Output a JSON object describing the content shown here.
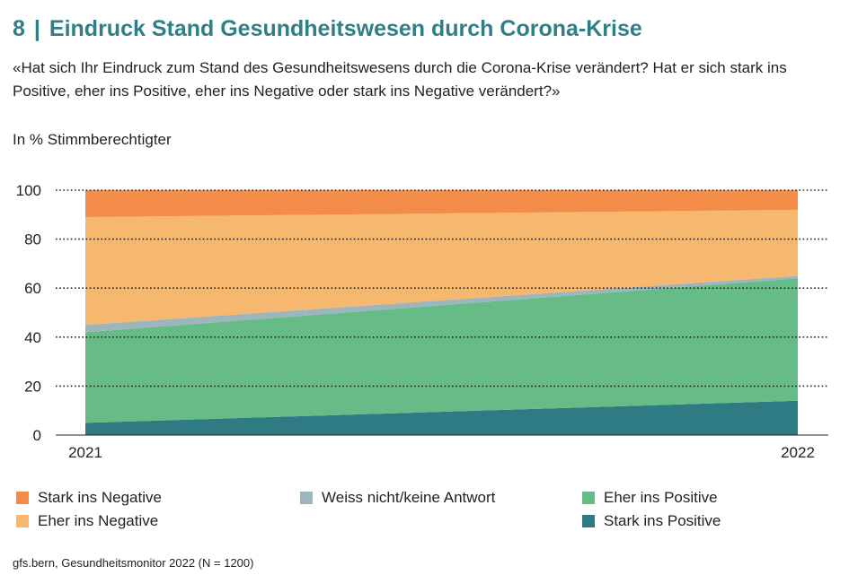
{
  "header": {
    "number": "8",
    "separator": "|",
    "title": "Eindruck Stand Gesundheitswesen durch Corona-Krise",
    "question": "«Hat sich Ihr Eindruck zum Stand des Gesundheitswesens durch die Corona-Krise verändert? Hat er sich stark ins Positive, eher ins Positive, eher ins Negative oder stark ins Negative verändert?»",
    "unit": "In % Stimmberechtigter"
  },
  "chart_data": {
    "type": "area",
    "stacked": true,
    "x": [
      "2021",
      "2022"
    ],
    "ylim": [
      0,
      100
    ],
    "yticks": [
      "0",
      "20",
      "40",
      "60",
      "80",
      "100"
    ],
    "grid": "dotted horizontal",
    "legend_position": "bottom",
    "series": [
      {
        "name": "Stark ins Positive",
        "values": [
          5,
          14
        ],
        "color": "#2e7b83"
      },
      {
        "name": "Eher ins Positive",
        "values": [
          37,
          50
        ],
        "color": "#66bb87"
      },
      {
        "name": "Weiss nicht/keine Antwort",
        "values": [
          3,
          1
        ],
        "color": "#9db5bd"
      },
      {
        "name": "Eher ins Negative",
        "values": [
          44,
          27
        ],
        "color": "#f6b86e"
      },
      {
        "name": "Stark ins Negative",
        "values": [
          11,
          8
        ],
        "color": "#f28c48"
      }
    ]
  },
  "legend": [
    {
      "label": "Stark ins Negative",
      "color": "#f28c48"
    },
    {
      "label": "Weiss nicht/keine Antwort",
      "color": "#9db5bd"
    },
    {
      "label": "Eher ins Positive",
      "color": "#66bb87"
    },
    {
      "label": "Eher ins Negative",
      "color": "#f6b86e"
    },
    {
      "label": "Stark ins Positive",
      "color": "#2e7b83"
    }
  ],
  "footer": {
    "source": "gfs.bern, Gesundheitsmonitor 2022 (N = 1200)"
  }
}
